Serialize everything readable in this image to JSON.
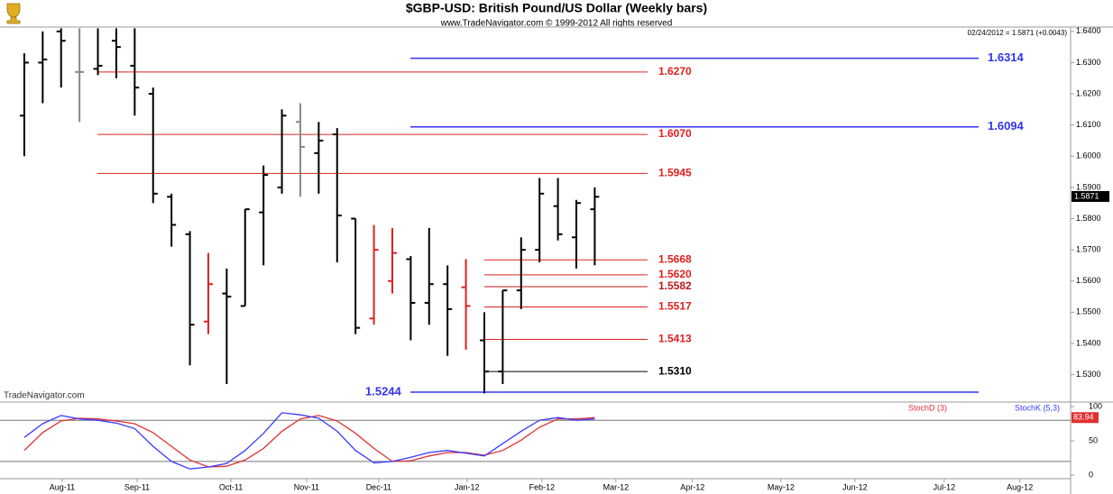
{
  "chart_data": [
    {
      "type": "ohlc",
      "title": "$GBP-USD:  British Pound/US Dollar  (Weekly bars)",
      "subtitle": "www.TradeNavigator.com © 1999-2012 All rights reserved",
      "annotations": {
        "info": "02/24/2012 = 1.5871 (+0.0043)",
        "watermark": "TradeNavigator.com"
      },
      "last_value": 1.5871,
      "last_label": "1.5871",
      "x": [
        0,
        1,
        2,
        3,
        4,
        5,
        6,
        7,
        8,
        9,
        10,
        11,
        12,
        13,
        14,
        15,
        16,
        17,
        18,
        19,
        20,
        21,
        22,
        23,
        24,
        25,
        26,
        27,
        28,
        29,
        30,
        31
      ],
      "open": [
        1.613,
        1.63,
        1.64,
        1.627,
        1.628,
        1.637,
        1.629,
        1.62,
        1.587,
        1.575,
        1.547,
        1.556,
        1.552,
        1.582,
        1.59,
        1.611,
        1.601,
        1.607,
        1.58,
        1.548,
        1.56,
        1.567,
        1.553,
        1.559,
        1.558,
        1.541,
        1.531,
        1.557,
        1.57,
        1.584,
        1.574,
        1.583
      ],
      "high": [
        1.633,
        1.64,
        1.641,
        1.641,
        1.641,
        1.641,
        1.641,
        1.622,
        1.588,
        1.576,
        1.569,
        1.564,
        1.583,
        1.597,
        1.615,
        1.617,
        1.611,
        1.609,
        1.58,
        1.578,
        1.577,
        1.568,
        1.577,
        1.565,
        1.567,
        1.55,
        1.557,
        1.574,
        1.593,
        1.593,
        1.586,
        1.59
      ],
      "low": [
        1.6,
        1.617,
        1.622,
        1.611,
        1.626,
        1.625,
        1.613,
        1.585,
        1.571,
        1.533,
        1.543,
        1.527,
        1.552,
        1.565,
        1.588,
        1.587,
        1.588,
        1.566,
        1.543,
        1.546,
        1.556,
        1.541,
        1.546,
        1.536,
        1.538,
        1.524,
        1.527,
        1.551,
        1.566,
        1.573,
        1.564,
        1.565
      ],
      "close": [
        1.63,
        1.631,
        1.637,
        1.627,
        1.629,
        1.635,
        1.622,
        1.588,
        1.578,
        1.546,
        1.559,
        1.555,
        1.583,
        1.594,
        1.613,
        1.603,
        1.605,
        1.581,
        1.545,
        1.57,
        1.569,
        1.553,
        1.559,
        1.551,
        1.552,
        1.531,
        1.557,
        1.57,
        1.588,
        1.575,
        1.585,
        1.587
      ],
      "bar_colors": [
        "#000",
        "#000",
        "#000",
        "#888",
        "#000",
        "#000",
        "#000",
        "#000",
        "#000",
        "#000",
        "#e02020",
        "#000",
        "#000",
        "#000",
        "#000",
        "#888",
        "#000",
        "#000",
        "#000",
        "#e02020",
        "#e02020",
        "#000",
        "#000",
        "#000",
        "#e02020",
        "#000",
        "#000",
        "#000",
        "#000",
        "#000",
        "#000",
        "#000"
      ],
      "xlim": [
        -1.32,
        56.86
      ],
      "xticks": [
        {
          "value": 2.06,
          "label": "Aug-11"
        },
        {
          "value": 6.13,
          "label": "Sep-11"
        },
        {
          "value": 11.23,
          "label": "Oct-11"
        },
        {
          "value": 15.34,
          "label": "Nov-11"
        },
        {
          "value": 19.26,
          "label": "Dec-11"
        },
        {
          "value": 24.06,
          "label": "Jan-12"
        },
        {
          "value": 28.13,
          "label": "Feb-12"
        },
        {
          "value": 32.15,
          "label": "Mar-12"
        },
        {
          "value": 36.31,
          "label": "Apr-12"
        },
        {
          "value": 41.12,
          "label": "May-12"
        },
        {
          "value": 45.14,
          "label": "Jun-12"
        },
        {
          "value": 49.99,
          "label": "Jul-12"
        },
        {
          "value": 54.1,
          "label": "Aug-12"
        }
      ],
      "ylim": [
        1.5215,
        1.6414
      ],
      "yticks": [
        {
          "value": 1.64,
          "label": "1.6400"
        },
        {
          "value": 1.63,
          "label": "1.6300"
        },
        {
          "value": 1.62,
          "label": "1.6200"
        },
        {
          "value": 1.61,
          "label": "1.6100"
        },
        {
          "value": 1.6,
          "label": "1.6000"
        },
        {
          "value": 1.59,
          "label": "1.5900"
        },
        {
          "value": 1.58,
          "label": "1.5800"
        },
        {
          "value": 1.57,
          "label": "1.5700"
        },
        {
          "value": 1.56,
          "label": "1.5600"
        },
        {
          "value": 1.55,
          "label": "1.5500"
        },
        {
          "value": 1.54,
          "label": "1.5400"
        },
        {
          "value": 1.53,
          "label": "1.5300"
        }
      ],
      "levels": [
        {
          "value": 1.6314,
          "label": "1.6314",
          "color": "#3333ee"
        },
        {
          "value": 1.6094,
          "label": "1.6094",
          "color": "#3333ee"
        },
        {
          "value": 1.5244,
          "label": "1.5244",
          "color": "#3333ee"
        },
        {
          "value": 1.627,
          "label": "1.6270",
          "color": "#e02020"
        },
        {
          "value": 1.607,
          "label": "1.6070",
          "color": "#e02020"
        },
        {
          "value": 1.5945,
          "label": "1.5945",
          "color": "#e02020"
        },
        {
          "value": 1.5668,
          "label": "1.5668",
          "color": "#e02020"
        },
        {
          "value": 1.562,
          "label": "1.5620",
          "color": "#e02020"
        },
        {
          "value": 1.5582,
          "label": "1.5582",
          "color": "#c01818"
        },
        {
          "value": 1.5517,
          "label": "1.5517",
          "color": "#e02020"
        },
        {
          "value": 1.5413,
          "label": "1.5413",
          "color": "#e02020"
        },
        {
          "value": 1.531,
          "label": "1.5310",
          "color": "#000000"
        }
      ]
    },
    {
      "type": "line",
      "x": [
        0,
        1,
        2,
        3,
        4,
        5,
        6,
        7,
        8,
        9,
        10,
        11,
        12,
        13,
        14,
        15,
        16,
        17,
        18,
        19,
        20,
        21,
        22,
        23,
        24,
        25,
        26,
        27,
        28,
        29,
        30,
        31
      ],
      "xlim": [
        -1.32,
        56.86
      ],
      "series": [
        {
          "name": "StochD (3)",
          "color": "#e03030",
          "last_label": "83.94",
          "values": [
            36,
            62,
            79,
            83,
            82,
            79,
            75,
            62,
            42,
            22,
            12,
            13,
            22,
            39,
            64,
            82,
            87,
            79,
            61,
            39,
            20,
            21,
            28,
            33,
            33,
            29,
            36,
            51,
            70,
            82,
            82,
            83.94
          ]
        },
        {
          "name": "StochK (5,3)",
          "color": "#3a3aff",
          "values": [
            55,
            75,
            87,
            82,
            80,
            76,
            68,
            42,
            20,
            9,
            12,
            17,
            36,
            61,
            91,
            88,
            83,
            64,
            36,
            18,
            20,
            26,
            33,
            36,
            32,
            28,
            46,
            64,
            80,
            84,
            80,
            82
          ]
        }
      ],
      "ylim": [
        -17,
        104
      ],
      "yticks": [
        0,
        50,
        100
      ],
      "levels": [
        20,
        80
      ]
    }
  ]
}
